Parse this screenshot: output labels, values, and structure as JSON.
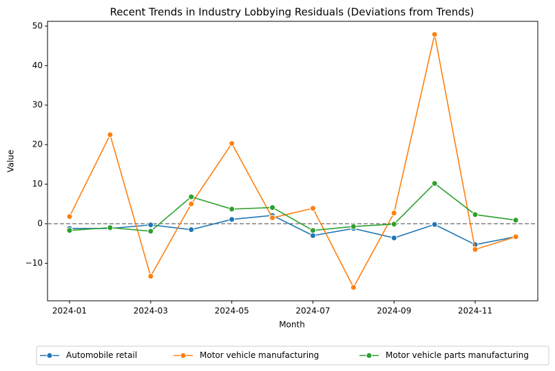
{
  "chart_data": {
    "type": "line",
    "title": "Recent Trends in Industry Lobbying Residuals (Deviations from Trends)",
    "x_label": "Month",
    "y_label": "Value",
    "x": [
      "2024-01",
      "2024-02",
      "2024-03",
      "2024-04",
      "2024-05",
      "2024-06",
      "2024-07",
      "2024-08",
      "2024-09",
      "2024-10",
      "2024-11",
      "2024-12"
    ],
    "xticks": [
      "2024-01",
      "2024-03",
      "2024-05",
      "2024-07",
      "2024-09",
      "2024-11"
    ],
    "ylim": [
      -19.5,
      51.2
    ],
    "yticks": [
      {
        "value": -10,
        "label": "−10"
      },
      0,
      10,
      20,
      30,
      40,
      50
    ],
    "reference_line": 0,
    "legend": "bottom",
    "series": [
      {
        "name": "Automobile retail",
        "color": "#1f77b4",
        "values": [
          -1.2,
          -1.2,
          -0.3,
          -1.5,
          1.1,
          2.1,
          -3.0,
          -1.2,
          -3.6,
          -0.2,
          -5.3,
          -3.3
        ]
      },
      {
        "name": "Motor vehicle manufacturing",
        "color": "#ff7f0e",
        "values": [
          1.8,
          22.5,
          -13.3,
          5.0,
          20.3,
          1.5,
          3.9,
          -16.1,
          2.7,
          47.9,
          -6.5,
          -3.3
        ]
      },
      {
        "name": "Motor vehicle parts manufacturing",
        "color": "#2ca02c",
        "values": [
          -1.7,
          -1.0,
          -1.9,
          6.8,
          3.7,
          4.1,
          -1.7,
          -0.7,
          -0.1,
          10.2,
          2.3,
          0.9
        ]
      }
    ]
  }
}
